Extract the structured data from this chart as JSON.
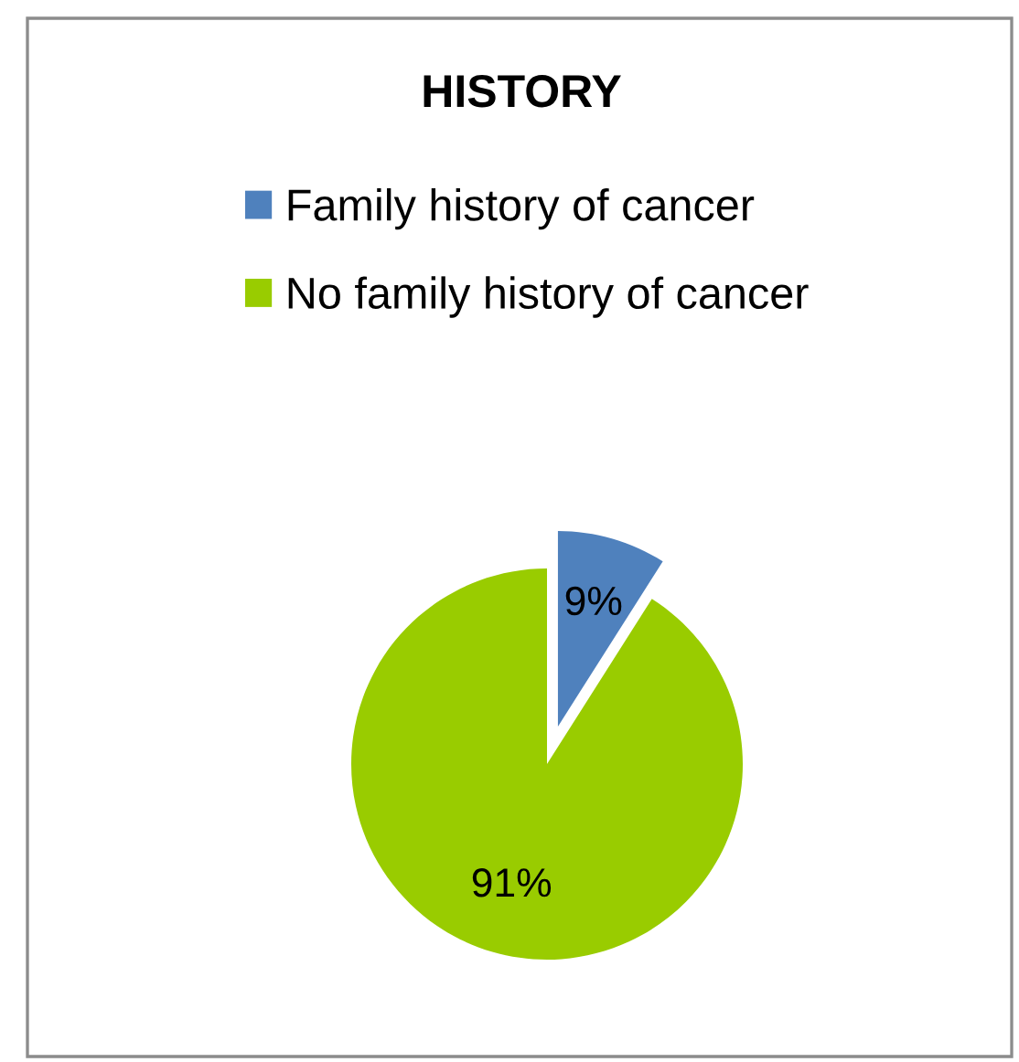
{
  "chart_data": {
    "type": "pie",
    "title": "HISTORY",
    "categories": [
      "Family history of cancer",
      "No family history of cancer"
    ],
    "values": [
      9,
      91
    ],
    "colors": [
      "#4f81bd",
      "#99cc00"
    ],
    "value_labels": [
      "9%",
      "91%"
    ],
    "legend": "top"
  }
}
